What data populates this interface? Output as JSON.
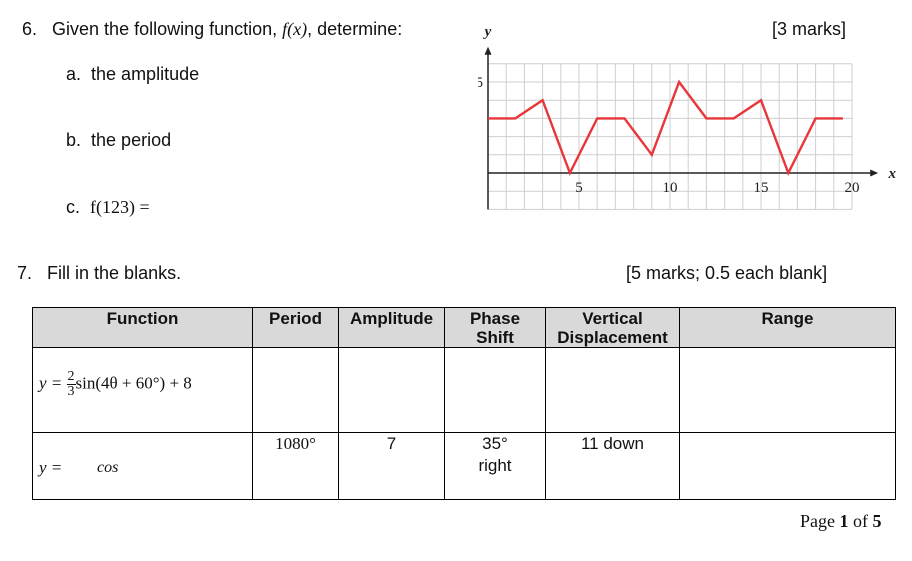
{
  "q6": {
    "number": "6.",
    "prompt_pre": "Given the following function, ",
    "prompt_func": "f(x)",
    "prompt_post": ", determine:",
    "marks": "[3 marks]",
    "parts": [
      {
        "letter": "a.",
        "text": "the amplitude"
      },
      {
        "letter": "b.",
        "text": "the period"
      },
      {
        "letter": "c.",
        "text": "f(123) ="
      }
    ]
  },
  "graph": {
    "y_axis_label": "y",
    "x_axis_label": "x",
    "y_tick_labels": [
      "5"
    ],
    "x_tick_labels": [
      "5",
      "10",
      "15",
      "20"
    ],
    "line_color": "#e8363a",
    "grid_color": "#cfcfcf"
  },
  "chart_data": {
    "type": "line",
    "x": [
      0,
      1.5,
      3,
      4.5,
      6,
      7.5,
      9,
      10.5,
      12,
      13.5,
      15,
      16.5,
      18,
      19.5
    ],
    "y": [
      3,
      3,
      4,
      0,
      3,
      3,
      1,
      5,
      3,
      3,
      4,
      0,
      3,
      3
    ],
    "xlim": [
      0,
      21
    ],
    "ylim": [
      -2,
      6
    ],
    "xlabel": "x",
    "ylabel": "y",
    "grid": true,
    "x_ticks": [
      5,
      10,
      15,
      20
    ],
    "y_ticks": [
      5
    ]
  },
  "q7": {
    "number": "7.",
    "prompt": "Fill in the blanks.",
    "marks": "[5 marks; 0.5 each blank]",
    "headers": {
      "function": "Function",
      "period": "Period",
      "amplitude": "Amplitude",
      "phase_line1": "Phase",
      "phase_line2": "Shift",
      "vert_line1": "Vertical",
      "vert_line2": "Displacement",
      "range": "Range"
    },
    "row1": {
      "lhs": "y =",
      "frac_num": "2",
      "frac_den": "3",
      "rhs": "sin(4θ + 60°) + 8",
      "period": "",
      "amplitude": "",
      "phase": "",
      "vertical": "",
      "range": ""
    },
    "row2": {
      "lhs": "y =",
      "func": "cos",
      "period": "1080°",
      "amplitude": "7",
      "phase_line1": "35°",
      "phase_line2": "right",
      "vertical": "11 down",
      "range": ""
    }
  },
  "footer": {
    "page_word": "Page",
    "current": "1",
    "of_word": "of",
    "total": "5"
  }
}
